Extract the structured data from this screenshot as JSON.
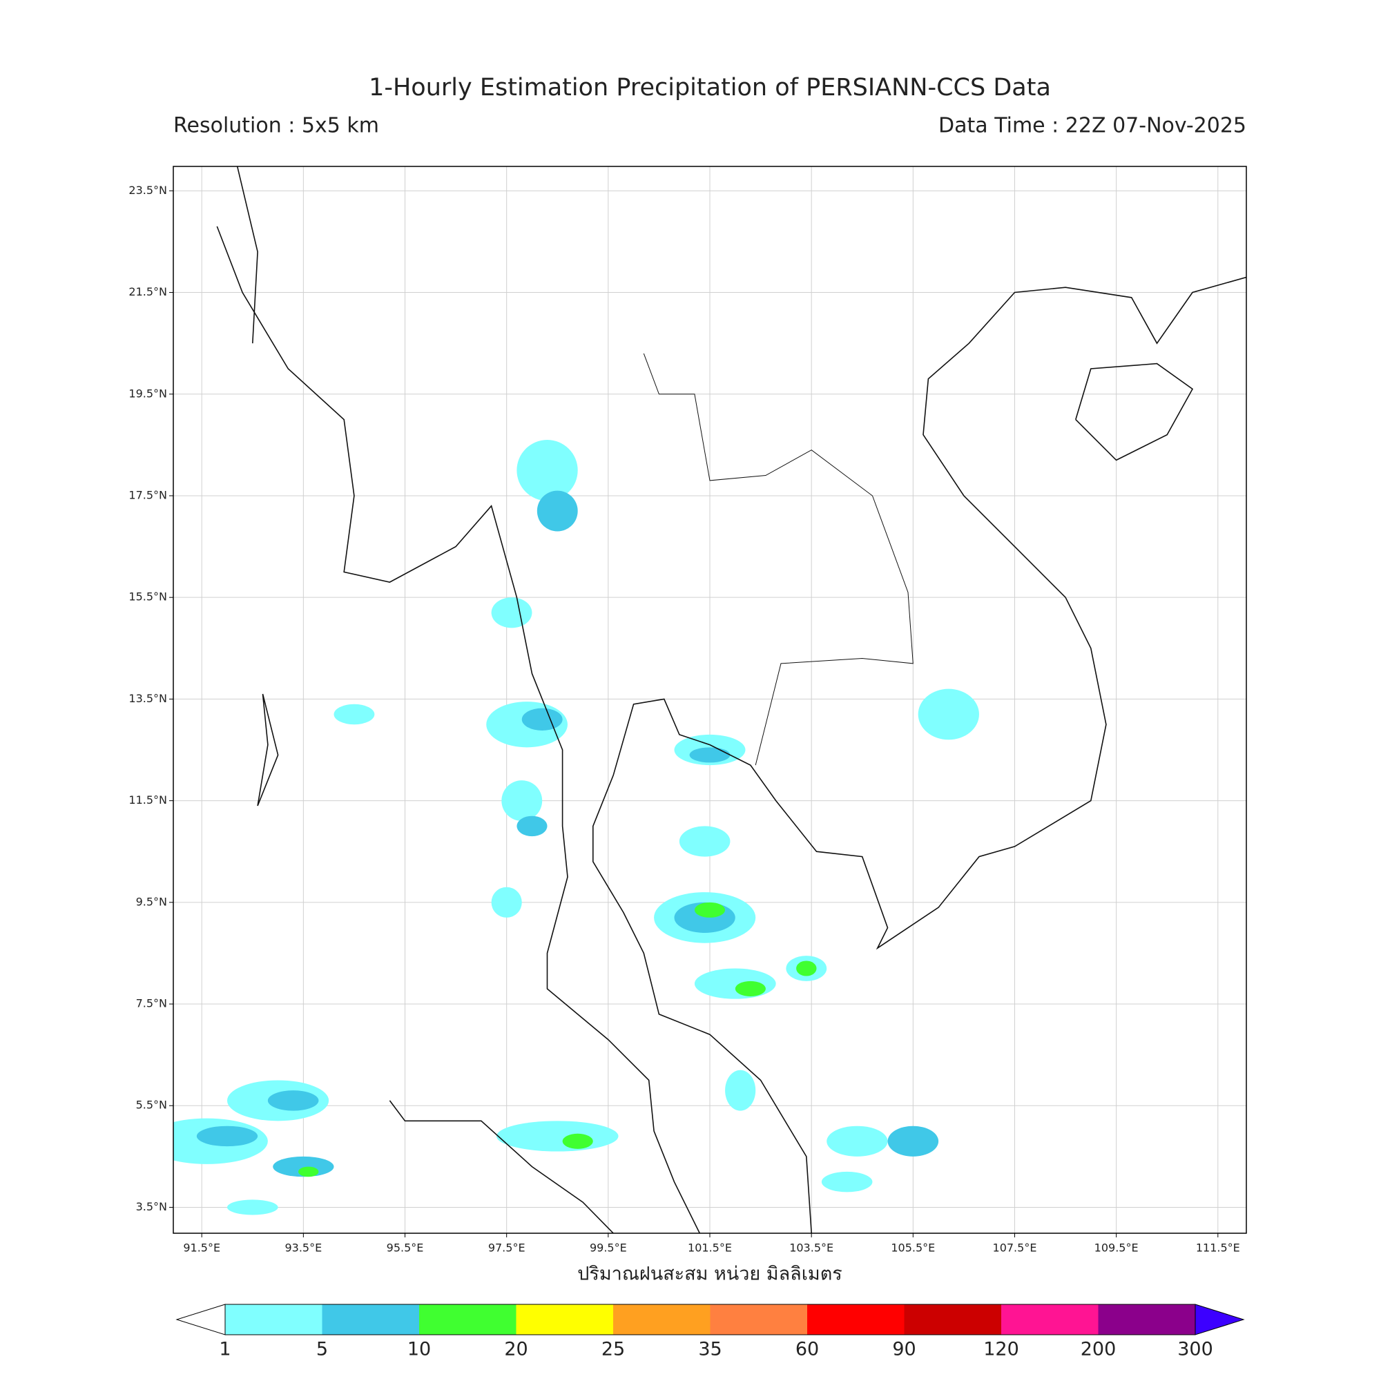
{
  "title": "1-Hourly Estimation Precipitation of PERSIANN-CCS Data",
  "subtitle_left": "Resolution : 5x5 km",
  "subtitle_right": "Data Time : 22Z 07-Nov-2025",
  "map": {
    "xlim": [
      90.94,
      112.06
    ],
    "ylim": [
      2.99,
      23.98
    ],
    "grid": true,
    "xticks": [
      {
        "value": 91.5,
        "label": "91.5°E"
      },
      {
        "value": 93.5,
        "label": "93.5°E"
      },
      {
        "value": 95.5,
        "label": "95.5°E"
      },
      {
        "value": 97.5,
        "label": "97.5°E"
      },
      {
        "value": 99.5,
        "label": "99.5°E"
      },
      {
        "value": 101.5,
        "label": "101.5°E"
      },
      {
        "value": 103.5,
        "label": "103.5°E"
      },
      {
        "value": 105.5,
        "label": "105.5°E"
      },
      {
        "value": 107.5,
        "label": "107.5°E"
      },
      {
        "value": 109.5,
        "label": "109.5°E"
      },
      {
        "value": 111.5,
        "label": "111.5°E"
      }
    ],
    "yticks": [
      {
        "value": 3.5,
        "label": "3.5°N"
      },
      {
        "value": 5.5,
        "label": "5.5°N"
      },
      {
        "value": 7.5,
        "label": "7.5°N"
      },
      {
        "value": 9.5,
        "label": "9.5°N"
      },
      {
        "value": 11.5,
        "label": "11.5°N"
      },
      {
        "value": 13.5,
        "label": "13.5°N"
      },
      {
        "value": 15.5,
        "label": "15.5°N"
      },
      {
        "value": 17.5,
        "label": "17.5°N"
      },
      {
        "value": 19.5,
        "label": "19.5°N"
      },
      {
        "value": 21.5,
        "label": "21.5°N"
      },
      {
        "value": 23.5,
        "label": "23.5°N"
      }
    ]
  },
  "xlabel": "ปริมาณฝนสะสม หน่วย มิลลิเมตร",
  "colorbar": {
    "levels": [
      1,
      5,
      10,
      20,
      25,
      35,
      60,
      90,
      120,
      200,
      300
    ],
    "colors": [
      "#80ffff",
      "#40c8e8",
      "#40ff30",
      "#ffff00",
      "#ffa020",
      "#ff8040",
      "#ff0000",
      "#cc0000",
      "#ff1493",
      "#8b008b",
      "#3c00ff"
    ]
  }
}
